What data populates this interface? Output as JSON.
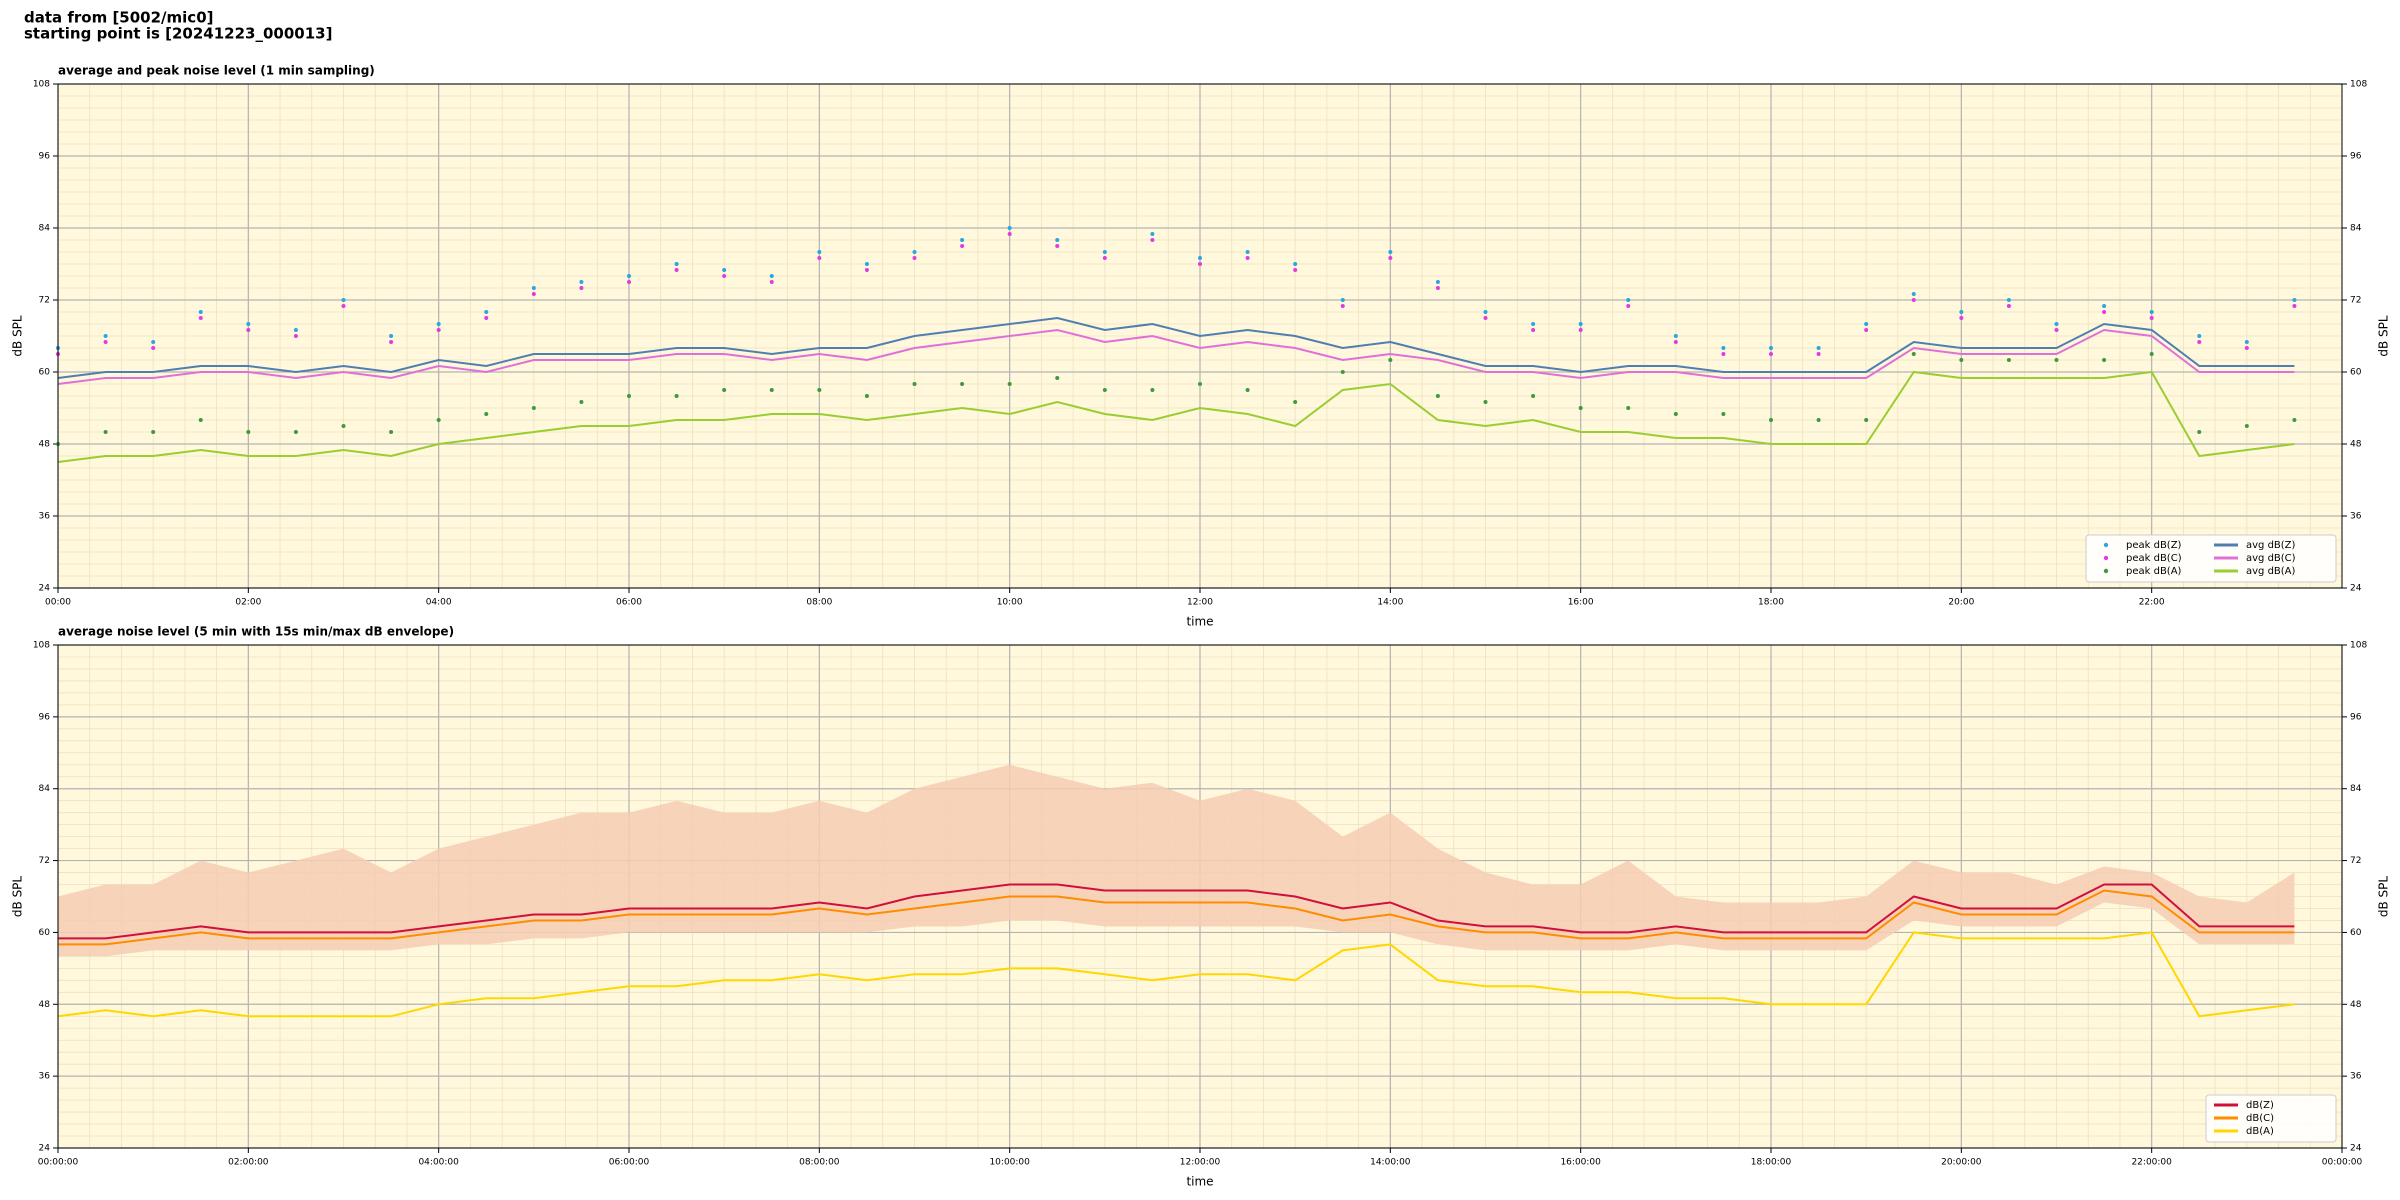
{
  "header": {
    "lines": [
      "data from [5002/mic0]",
      "starting point is [20241223_000013]"
    ]
  },
  "chart_data": [
    {
      "type": "line",
      "title": "average and peak noise level (1 min sampling)",
      "x_label": "time",
      "y_label": "dB SPL",
      "xlim": [
        0,
        24
      ],
      "ylim": [
        24,
        108
      ],
      "xticks": [
        {
          "value": 0,
          "label": "00:00"
        },
        {
          "value": 2,
          "label": "02:00"
        },
        {
          "value": 4,
          "label": "04:00"
        },
        {
          "value": 6,
          "label": "06:00"
        },
        {
          "value": 8,
          "label": "08:00"
        },
        {
          "value": 10,
          "label": "10:00"
        },
        {
          "value": 12,
          "label": "12:00"
        },
        {
          "value": 14,
          "label": "14:00"
        },
        {
          "value": 16,
          "label": "16:00"
        },
        {
          "value": 18,
          "label": "18:00"
        },
        {
          "value": 20,
          "label": "20:00"
        },
        {
          "value": 22,
          "label": "22:00"
        }
      ],
      "yticks": [
        24,
        36,
        48,
        60,
        72,
        84,
        96,
        108
      ],
      "grid": true,
      "legend": "lower right",
      "background": "#fff8dc",
      "x": [
        0,
        0.5,
        1,
        1.5,
        2,
        2.5,
        3,
        3.5,
        4,
        4.5,
        5,
        5.5,
        6,
        6.5,
        7,
        7.5,
        8,
        8.5,
        9,
        9.5,
        10,
        10.5,
        11,
        11.5,
        12,
        12.5,
        13,
        13.5,
        14,
        14.5,
        15,
        15.5,
        16,
        16.5,
        17,
        17.5,
        18,
        18.5,
        19,
        19.5,
        20,
        20.5,
        21,
        21.5,
        22,
        22.5,
        23,
        23.5
      ],
      "series": [
        {
          "name": "peak dB(Z)",
          "kind": "scatter",
          "color": "#2aa7e0",
          "values": [
            64,
            66,
            65,
            70,
            68,
            67,
            72,
            66,
            68,
            70,
            74,
            75,
            76,
            78,
            77,
            76,
            80,
            78,
            80,
            82,
            84,
            82,
            80,
            83,
            79,
            80,
            78,
            72,
            80,
            75,
            70,
            68,
            68,
            72,
            66,
            64,
            64,
            64,
            68,
            73,
            70,
            72,
            68,
            71,
            70,
            66,
            65,
            72
          ]
        },
        {
          "name": "peak dB(C)",
          "kind": "scatter",
          "color": "#e03ce0",
          "values": [
            63,
            65,
            64,
            69,
            67,
            66,
            71,
            65,
            67,
            69,
            73,
            74,
            75,
            77,
            76,
            75,
            79,
            77,
            79,
            81,
            83,
            81,
            79,
            82,
            78,
            79,
            77,
            71,
            79,
            74,
            69,
            67,
            67,
            71,
            65,
            63,
            63,
            63,
            67,
            72,
            69,
            71,
            67,
            70,
            69,
            65,
            64,
            71
          ]
        },
        {
          "name": "peak dB(A)",
          "kind": "scatter",
          "color": "#3f9a3f",
          "values": [
            48,
            50,
            50,
            52,
            50,
            50,
            51,
            50,
            52,
            53,
            54,
            55,
            56,
            56,
            57,
            57,
            57,
            56,
            58,
            58,
            58,
            59,
            57,
            57,
            58,
            57,
            55,
            60,
            62,
            56,
            55,
            56,
            54,
            54,
            53,
            53,
            52,
            52,
            52,
            63,
            62,
            62,
            62,
            62,
            63,
            50,
            51,
            52
          ]
        },
        {
          "name": "avg dB(Z)",
          "kind": "line",
          "color": "#4f7fb0",
          "values": [
            59,
            60,
            60,
            61,
            61,
            60,
            61,
            60,
            62,
            61,
            63,
            63,
            63,
            64,
            64,
            63,
            64,
            64,
            66,
            67,
            68,
            69,
            67,
            68,
            66,
            67,
            66,
            64,
            65,
            63,
            61,
            61,
            60,
            61,
            61,
            60,
            60,
            60,
            60,
            65,
            64,
            64,
            64,
            68,
            67,
            61,
            61,
            61
          ]
        },
        {
          "name": "avg dB(C)",
          "kind": "line",
          "color": "#e070d8",
          "values": [
            58,
            59,
            59,
            60,
            60,
            59,
            60,
            59,
            61,
            60,
            62,
            62,
            62,
            63,
            63,
            62,
            63,
            62,
            64,
            65,
            66,
            67,
            65,
            66,
            64,
            65,
            64,
            62,
            63,
            62,
            60,
            60,
            59,
            60,
            60,
            59,
            59,
            59,
            59,
            64,
            63,
            63,
            63,
            67,
            66,
            60,
            60,
            60
          ]
        },
        {
          "name": "avg dB(A)",
          "kind": "line",
          "color": "#9acd32",
          "values": [
            45,
            46,
            46,
            47,
            46,
            46,
            47,
            46,
            48,
            49,
            50,
            51,
            51,
            52,
            52,
            53,
            53,
            52,
            53,
            54,
            53,
            55,
            53,
            52,
            54,
            53,
            51,
            57,
            58,
            52,
            51,
            52,
            50,
            50,
            49,
            49,
            48,
            48,
            48,
            60,
            59,
            59,
            59,
            59,
            60,
            46,
            47,
            48
          ]
        }
      ]
    },
    {
      "type": "line",
      "title": "average noise level (5 min with 15s min/max dB envelope)",
      "x_label": "time",
      "y_label": "dB SPL",
      "xlim": [
        0,
        24
      ],
      "ylim": [
        24,
        108
      ],
      "xticks": [
        {
          "value": 0,
          "label": "00:00:00"
        },
        {
          "value": 2,
          "label": "02:00:00"
        },
        {
          "value": 4,
          "label": "04:00:00"
        },
        {
          "value": 6,
          "label": "06:00:00"
        },
        {
          "value": 8,
          "label": "08:00:00"
        },
        {
          "value": 10,
          "label": "10:00:00"
        },
        {
          "value": 12,
          "label": "12:00:00"
        },
        {
          "value": 14,
          "label": "14:00:00"
        },
        {
          "value": 16,
          "label": "16:00:00"
        },
        {
          "value": 18,
          "label": "18:00:00"
        },
        {
          "value": 20,
          "label": "20:00:00"
        },
        {
          "value": 22,
          "label": "22:00:00"
        },
        {
          "value": 24,
          "label": "00:00:00"
        }
      ],
      "yticks": [
        24,
        36,
        48,
        60,
        72,
        84,
        96,
        108
      ],
      "grid": true,
      "legend": "lower right",
      "background": "#fff8dc",
      "x": [
        0,
        0.5,
        1,
        1.5,
        2,
        2.5,
        3,
        3.5,
        4,
        4.5,
        5,
        5.5,
        6,
        6.5,
        7,
        7.5,
        8,
        8.5,
        9,
        9.5,
        10,
        10.5,
        11,
        11.5,
        12,
        12.5,
        13,
        13.5,
        14,
        14.5,
        15,
        15.5,
        16,
        16.5,
        17,
        17.5,
        18,
        18.5,
        19,
        19.5,
        20,
        20.5,
        21,
        21.5,
        22,
        22.5,
        23,
        23.5
      ],
      "envelope": {
        "color": "#f6cdb4",
        "min": [
          56,
          56,
          57,
          57,
          57,
          57,
          57,
          57,
          58,
          58,
          59,
          59,
          60,
          60,
          60,
          60,
          60,
          60,
          61,
          61,
          62,
          62,
          61,
          61,
          61,
          61,
          61,
          60,
          60,
          58,
          57,
          57,
          57,
          57,
          58,
          57,
          57,
          57,
          57,
          62,
          61,
          61,
          61,
          65,
          64,
          58,
          58,
          58
        ],
        "max": [
          66,
          68,
          68,
          72,
          70,
          72,
          74,
          70,
          74,
          76,
          78,
          80,
          80,
          82,
          80,
          80,
          82,
          80,
          84,
          86,
          88,
          86,
          84,
          85,
          82,
          84,
          82,
          76,
          80,
          74,
          70,
          68,
          68,
          72,
          66,
          65,
          65,
          65,
          66,
          72,
          70,
          70,
          68,
          71,
          70,
          66,
          65,
          70
        ]
      },
      "series": [
        {
          "name": "dB(Z)",
          "color": "#d0103a",
          "values": [
            59,
            59,
            60,
            61,
            60,
            60,
            60,
            60,
            61,
            62,
            63,
            63,
            64,
            64,
            64,
            64,
            65,
            64,
            66,
            67,
            68,
            68,
            67,
            67,
            67,
            67,
            66,
            64,
            65,
            62,
            61,
            61,
            60,
            60,
            61,
            60,
            60,
            60,
            60,
            66,
            64,
            64,
            64,
            68,
            68,
            61,
            61,
            61
          ]
        },
        {
          "name": "dB(C)",
          "color": "#ff8c00",
          "values": [
            58,
            58,
            59,
            60,
            59,
            59,
            59,
            59,
            60,
            61,
            62,
            62,
            63,
            63,
            63,
            63,
            64,
            63,
            64,
            65,
            66,
            66,
            65,
            65,
            65,
            65,
            64,
            62,
            63,
            61,
            60,
            60,
            59,
            59,
            60,
            59,
            59,
            59,
            59,
            65,
            63,
            63,
            63,
            67,
            66,
            60,
            60,
            60
          ]
        },
        {
          "name": "dB(A)",
          "color": "#ffd700",
          "values": [
            46,
            47,
            46,
            47,
            46,
            46,
            46,
            46,
            48,
            49,
            49,
            50,
            51,
            51,
            52,
            52,
            53,
            52,
            53,
            53,
            54,
            54,
            53,
            52,
            53,
            53,
            52,
            57,
            58,
            52,
            51,
            51,
            50,
            50,
            49,
            49,
            48,
            48,
            48,
            60,
            59,
            59,
            59,
            59,
            60,
            46,
            47,
            48
          ]
        }
      ]
    }
  ]
}
